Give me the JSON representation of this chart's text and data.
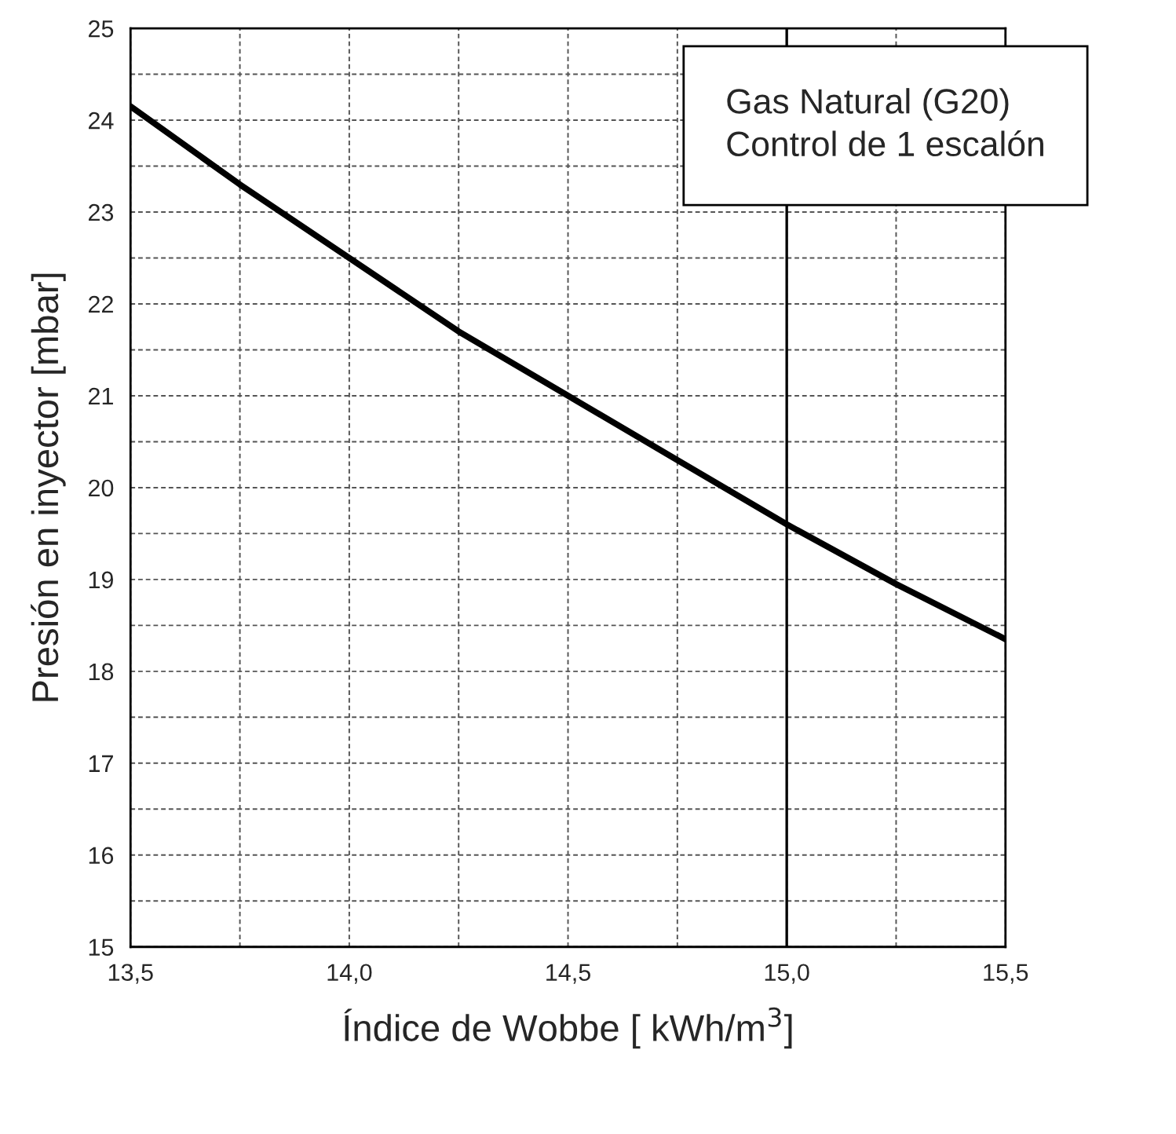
{
  "chart_data": {
    "type": "line",
    "xlabel": "Índice de Wobbe [ kWh/m$^{3}$]",
    "ylabel": "Presión en inyector [mbar]",
    "annotations": [
      "Gas Natural (G20)\nControl de 1 escalón"
    ],
    "x": [
      13.5,
      13.75,
      14.0,
      14.25,
      14.5,
      14.75,
      15.0,
      15.25,
      15.5
    ],
    "series": [
      {
        "color": "#000000",
        "values": [
          24.15,
          23.3,
          22.5,
          21.7,
          21.0,
          20.3,
          19.6,
          18.95,
          18.35
        ]
      }
    ],
    "xlim": [
      13.5,
      15.5
    ],
    "ylim": [
      15,
      25
    ],
    "xticks": [
      {
        "value": 13.5,
        "label": "13,5"
      },
      {
        "value": 13.75,
        "label": null
      },
      {
        "value": 14.0,
        "label": "14,0"
      },
      {
        "value": 14.25,
        "label": null
      },
      {
        "value": 14.5,
        "label": "14,5"
      },
      {
        "value": 14.75,
        "label": null
      },
      {
        "value": 15.0,
        "label": "15,0"
      },
      {
        "value": 15.25,
        "label": null
      },
      {
        "value": 15.5,
        "label": "15,5"
      }
    ],
    "yticks": [
      15,
      {
        "value": 15.5,
        "label": null
      },
      16,
      {
        "value": 16.5,
        "label": null
      },
      17,
      {
        "value": 17.5,
        "label": null
      },
      18,
      {
        "value": 18.5,
        "label": null
      },
      19,
      {
        "value": 19.5,
        "label": null
      },
      20,
      {
        "value": 20.5,
        "label": null
      },
      21,
      {
        "value": 21.5,
        "label": null
      },
      22,
      {
        "value": 22.5,
        "label": null
      },
      23,
      {
        "value": 23.5,
        "label": null
      },
      24,
      {
        "value": 24.5,
        "label": null
      },
      25
    ],
    "ref_lines": [
      {
        "axis": "x",
        "value": 15.0,
        "color": "#000000",
        "line_style": "solid"
      }
    ],
    "grid": true,
    "line_style": "solid",
    "marker": "none"
  }
}
